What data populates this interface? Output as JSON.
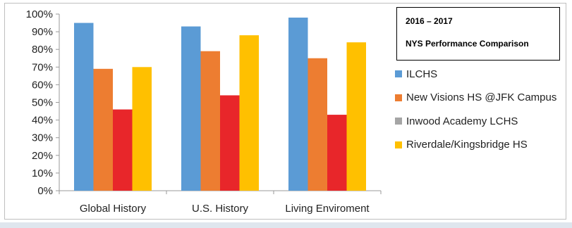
{
  "chart_data": {
    "type": "bar",
    "title_line1": "2016 – 2017",
    "title_line2": "NYS Performance Comparison",
    "categories": [
      "Global History",
      "U.S. History",
      "Living Enviroment"
    ],
    "series": [
      {
        "name": "ILCHS",
        "color": "#5b9bd5",
        "values": [
          95,
          93,
          98
        ]
      },
      {
        "name": "New Visions HS @JFK Campus",
        "color": "#ed7d31",
        "values": [
          69,
          79,
          75
        ]
      },
      {
        "name": "Inwood Academy LCHS",
        "color": "#a5a5a5",
        "bar_color": "#e8262a",
        "values": [
          46,
          54,
          43
        ]
      },
      {
        "name": "Riverdale/Kingsbridge HS",
        "color": "#ffc000",
        "values": [
          70,
          88,
          84
        ]
      }
    ],
    "ylim": [
      0,
      100
    ],
    "yticks": [
      "0%",
      "10%",
      "20%",
      "30%",
      "40%",
      "50%",
      "60%",
      "70%",
      "80%",
      "90%",
      "100%"
    ],
    "grid": false,
    "legend_position": "right"
  }
}
